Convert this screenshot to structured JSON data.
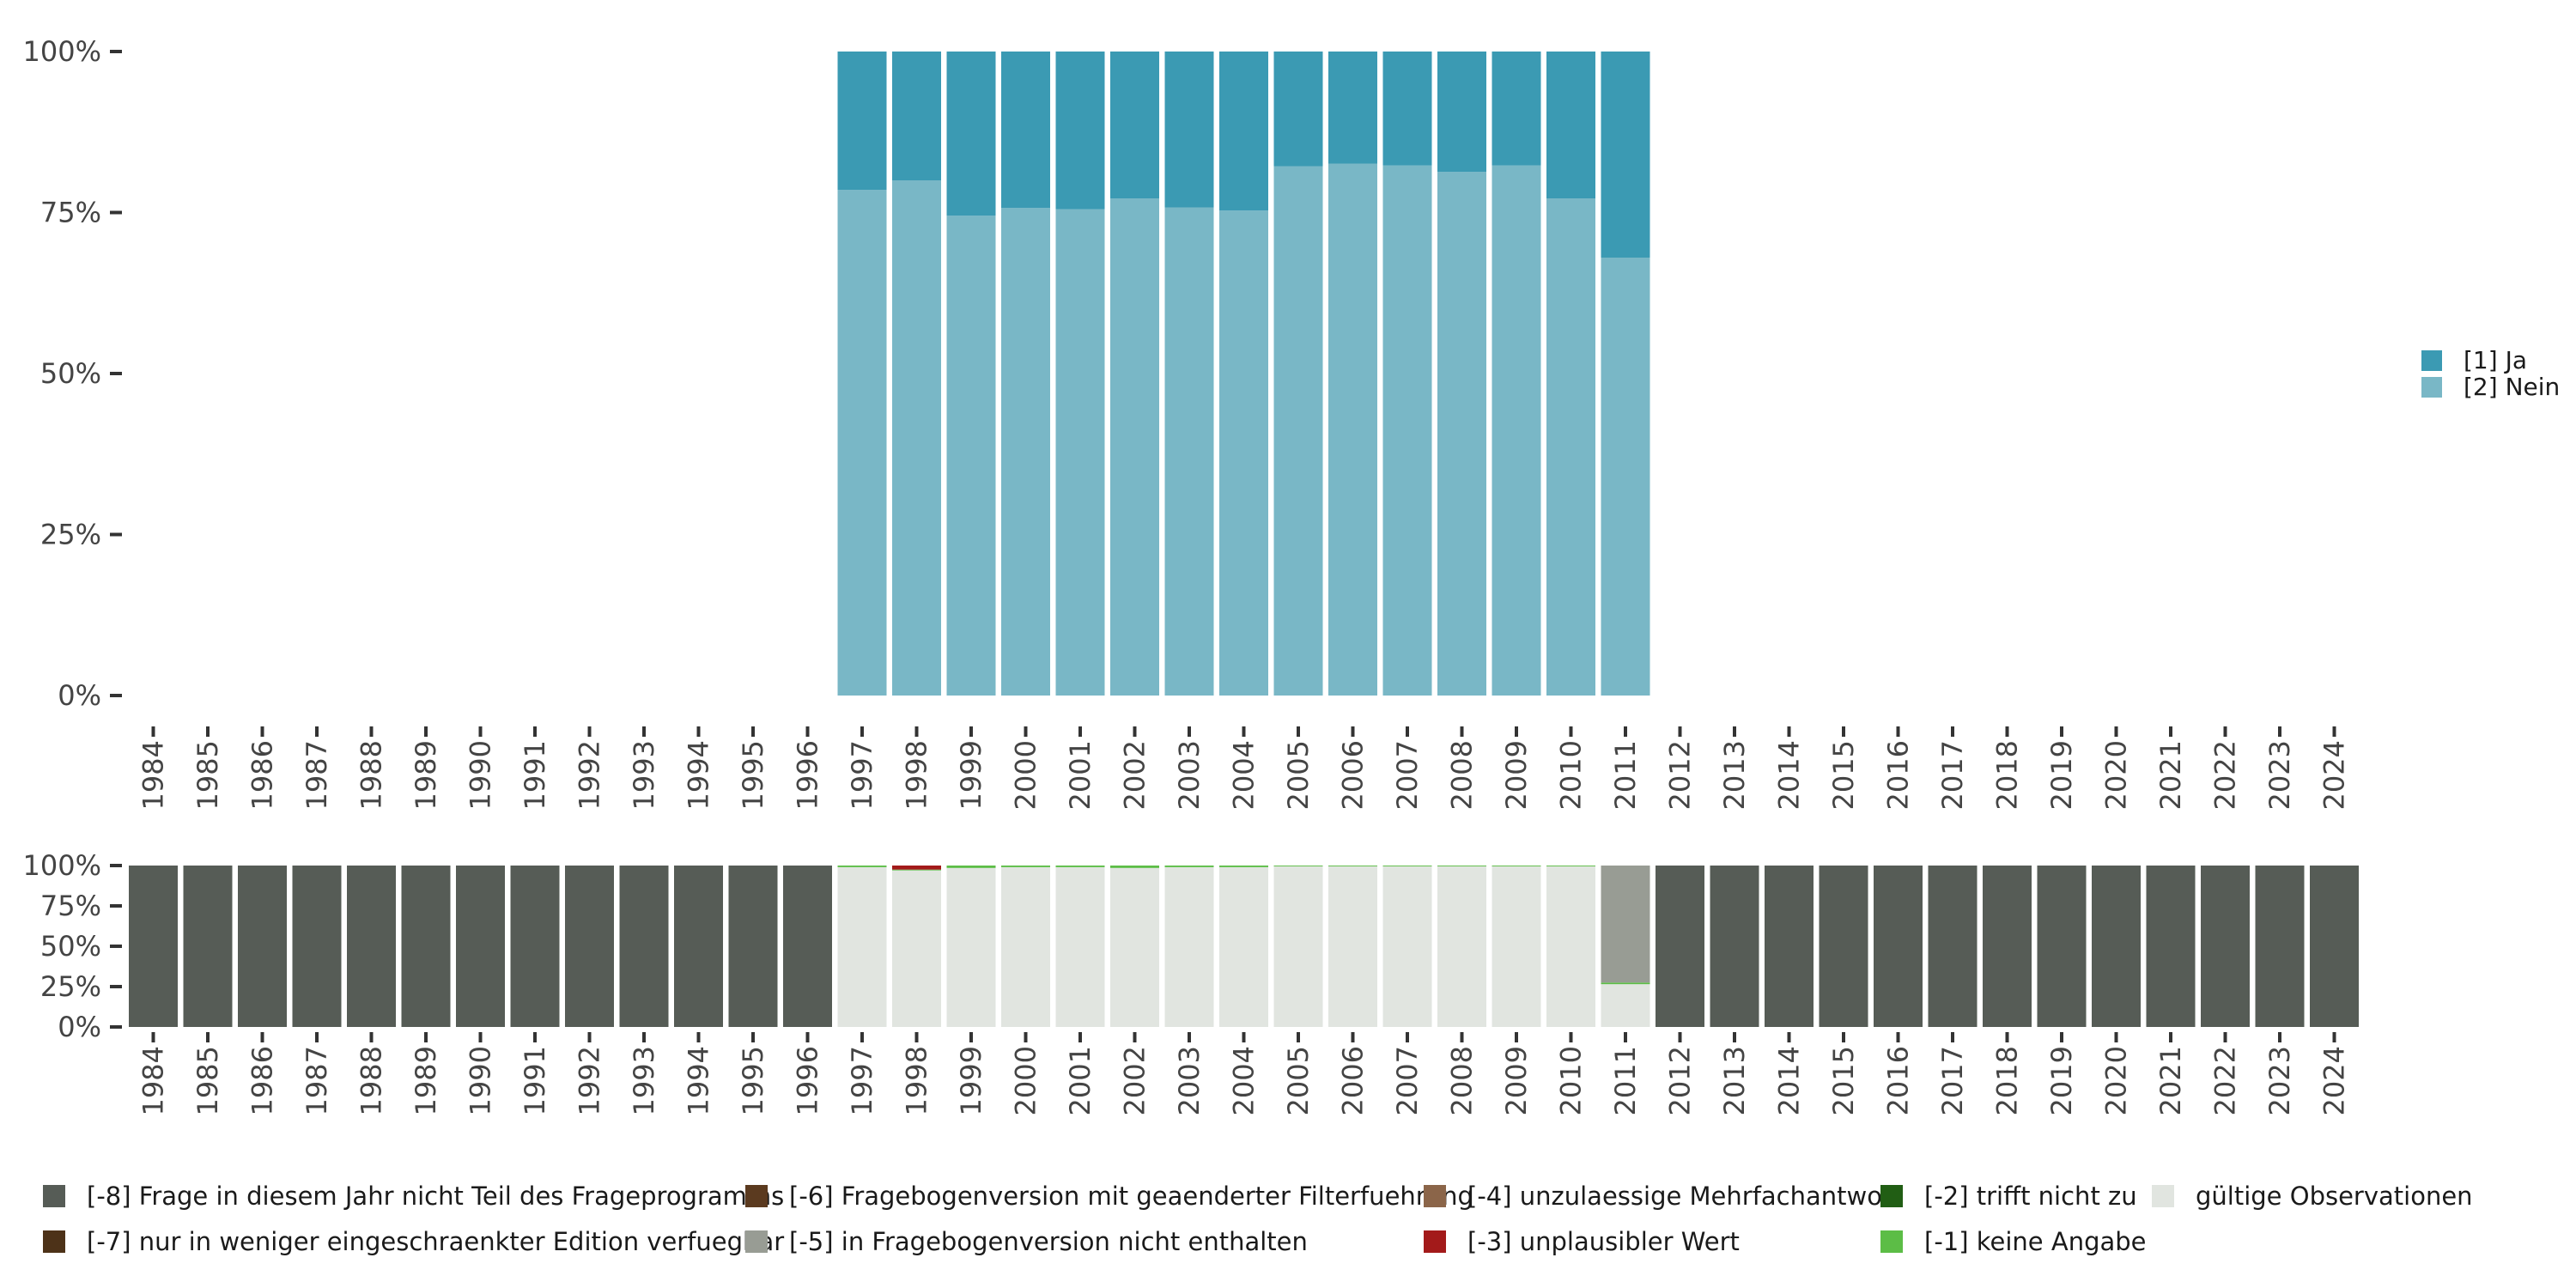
{
  "chart_data": [
    {
      "type": "bar",
      "stacked": true,
      "normalized": true,
      "title": "",
      "xlabel": "",
      "ylabel": "",
      "ylim": [
        0,
        100
      ],
      "yticks": [
        "0%",
        "25%",
        "50%",
        "75%",
        "100%"
      ],
      "categories": [
        "1984",
        "1985",
        "1986",
        "1987",
        "1988",
        "1989",
        "1990",
        "1991",
        "1992",
        "1993",
        "1994",
        "1995",
        "1996",
        "1997",
        "1998",
        "1999",
        "2000",
        "2001",
        "2002",
        "2003",
        "2004",
        "2005",
        "2006",
        "2007",
        "2008",
        "2009",
        "2010",
        "2011",
        "2012",
        "2013",
        "2014",
        "2015",
        "2016",
        "2017",
        "2018",
        "2019",
        "2020",
        "2021",
        "2022",
        "2023",
        "2024"
      ],
      "series": [
        {
          "name": "[2] Nein",
          "color": "#79b7c6",
          "values": [
            null,
            null,
            null,
            null,
            null,
            null,
            null,
            null,
            null,
            null,
            null,
            null,
            null,
            78.5,
            80,
            74.5,
            75.7,
            75.5,
            77.2,
            75.8,
            75.3,
            82.2,
            82.6,
            82.3,
            81.3,
            82.3,
            77.2,
            68,
            null,
            null,
            null,
            null,
            null,
            null,
            null,
            null,
            null,
            null,
            null,
            null,
            null
          ]
        },
        {
          "name": "[1] Ja",
          "color": "#3b9ab3",
          "values": [
            null,
            null,
            null,
            null,
            null,
            null,
            null,
            null,
            null,
            null,
            null,
            null,
            null,
            21.5,
            20,
            25.5,
            24.3,
            24.5,
            22.8,
            24.2,
            24.7,
            17.8,
            17.4,
            17.7,
            18.7,
            17.7,
            22.8,
            32,
            null,
            null,
            null,
            null,
            null,
            null,
            null,
            null,
            null,
            null,
            null,
            null,
            null
          ]
        }
      ],
      "legend": {
        "position": "right",
        "entries": [
          "[1] Ja",
          "[2] Nein"
        ]
      }
    },
    {
      "type": "bar",
      "stacked": true,
      "normalized": true,
      "title": "",
      "xlabel": "",
      "ylabel": "",
      "ylim": [
        0,
        100
      ],
      "yticks": [
        "0%",
        "25%",
        "50%",
        "75%",
        "100%"
      ],
      "categories": [
        "1984",
        "1985",
        "1986",
        "1987",
        "1988",
        "1989",
        "1990",
        "1991",
        "1992",
        "1993",
        "1994",
        "1995",
        "1996",
        "1997",
        "1998",
        "1999",
        "2000",
        "2001",
        "2002",
        "2003",
        "2004",
        "2005",
        "2006",
        "2007",
        "2008",
        "2009",
        "2010",
        "2011",
        "2012",
        "2013",
        "2014",
        "2015",
        "2016",
        "2017",
        "2018",
        "2019",
        "2020",
        "2021",
        "2022",
        "2023",
        "2024"
      ],
      "series": [
        {
          "name": "gültige Observationen",
          "color": "#e1e5e0",
          "values": [
            0,
            0,
            0,
            0,
            0,
            0,
            0,
            0,
            0,
            0,
            0,
            0,
            0,
            99,
            97,
            98.5,
            99,
            99,
            98.5,
            99,
            99,
            99.5,
            99.5,
            99.5,
            99.5,
            99.5,
            99.5,
            26.5,
            0,
            0,
            0,
            0,
            0,
            0,
            0,
            0,
            0,
            0,
            0,
            0,
            0
          ]
        },
        {
          "name": "[-1] keine Angabe",
          "color": "#5cbd46",
          "values": [
            0,
            0,
            0,
            0,
            0,
            0,
            0,
            0,
            0,
            0,
            0,
            0,
            0,
            1,
            0.5,
            1.5,
            1,
            1,
            1.5,
            1,
            1,
            0.5,
            0.5,
            0.5,
            0.5,
            0.5,
            0.5,
            1,
            0,
            0,
            0,
            0,
            0,
            0,
            0,
            0,
            0,
            0,
            0,
            0,
            0
          ]
        },
        {
          "name": "[-3] unplausibler Wert",
          "color": "#a31a1a",
          "values": [
            0,
            0,
            0,
            0,
            0,
            0,
            0,
            0,
            0,
            0,
            0,
            0,
            0,
            0,
            2.5,
            0,
            0,
            0,
            0,
            0,
            0,
            0,
            0,
            0,
            0,
            0,
            0,
            0,
            0,
            0,
            0,
            0,
            0,
            0,
            0,
            0,
            0,
            0,
            0,
            0,
            0
          ]
        },
        {
          "name": "[-5] in Fragebogenversion nicht enthalten",
          "color": "#989c94",
          "values": [
            0,
            0,
            0,
            0,
            0,
            0,
            0,
            0,
            0,
            0,
            0,
            0,
            0,
            0,
            0,
            0,
            0,
            0,
            0,
            0,
            0,
            0,
            0,
            0,
            0,
            0,
            0,
            72.5,
            0,
            0,
            0,
            0,
            0,
            0,
            0,
            0,
            0,
            0,
            0,
            0,
            0
          ]
        },
        {
          "name": "[-8] Frage in diesem Jahr nicht Teil des Frageprogramms",
          "color": "#565c56",
          "values": [
            100,
            100,
            100,
            100,
            100,
            100,
            100,
            100,
            100,
            100,
            100,
            100,
            100,
            0,
            0,
            0,
            0,
            0,
            0,
            0,
            0,
            0,
            0,
            0,
            0,
            0,
            0,
            0,
            100,
            100,
            100,
            100,
            100,
            100,
            100,
            100,
            100,
            100,
            100,
            100,
            100
          ]
        }
      ],
      "legend": {
        "position": "bottom",
        "entries": [
          {
            "label": "[-8] Frage in diesem Jahr nicht Teil des Frageprogramms",
            "color": "#565c56"
          },
          {
            "label": "[-7] nur in weniger eingeschraenkter Edition verfuegbar",
            "color": "#4d3218"
          },
          {
            "label": "[-6] Fragebogenversion mit geaenderter Filterfuehrung",
            "color": "#5b3a1f"
          },
          {
            "label": "[-5] in Fragebogenversion nicht enthalten",
            "color": "#989c94"
          },
          {
            "label": "[-4] unzulaessige Mehrfachantwort",
            "color": "#8b6549"
          },
          {
            "label": "[-3] unplausibler Wert",
            "color": "#a31a1a"
          },
          {
            "label": "[-2] trifft nicht zu",
            "color": "#215e14"
          },
          {
            "label": "[-1] keine Angabe",
            "color": "#5cbd46"
          },
          {
            "label": "gültige Observationen",
            "color": "#e1e5e0"
          }
        ]
      }
    }
  ]
}
